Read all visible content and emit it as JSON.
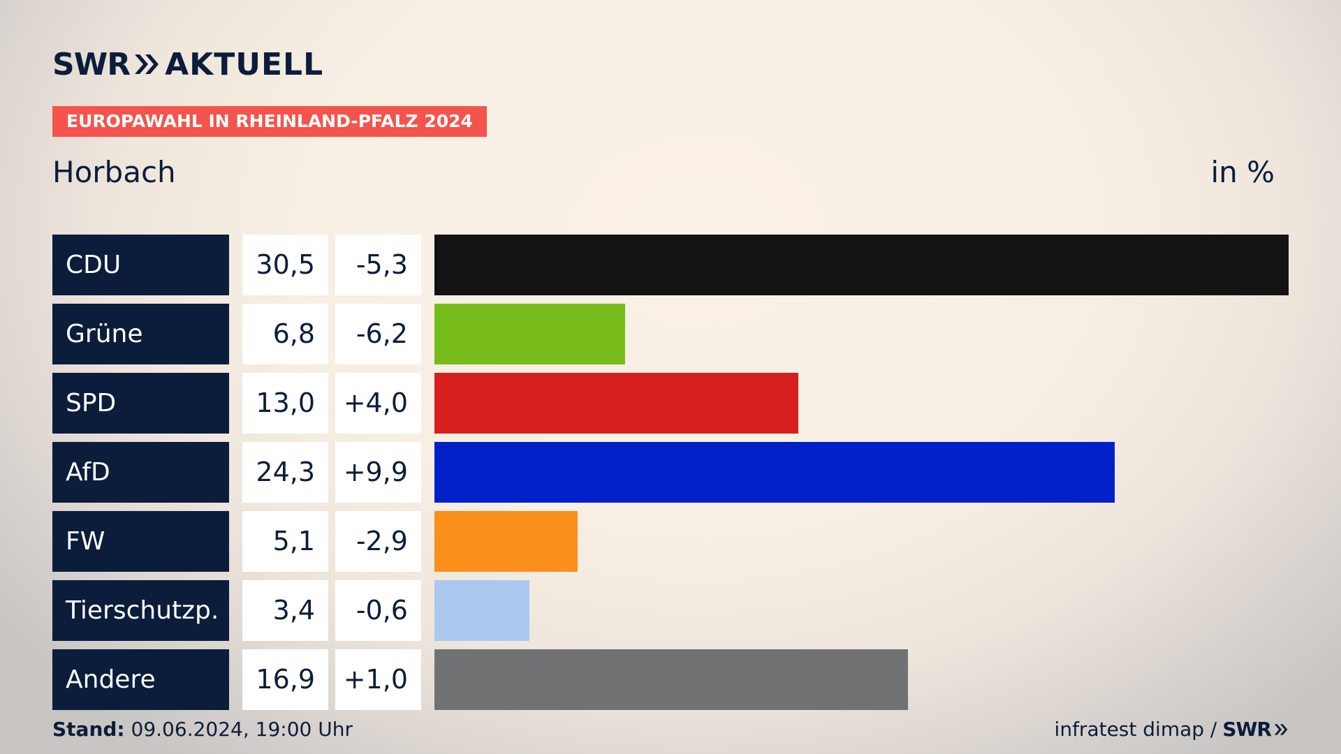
{
  "brand": {
    "swr": "SWR",
    "aktuell": "AKTUELL"
  },
  "election_tag": "EUROPAWAHL IN RHEINLAND-PFALZ 2024",
  "place": "Horbach",
  "unit": "in %",
  "footer": {
    "stand_label": "Stand:",
    "stand_value": "09.06.2024, 19:00 Uhr",
    "source": "infratest dimap /",
    "source_brand": "SWR"
  },
  "colors": {
    "navy": "#0b1d3a",
    "tag": "#f4544b"
  },
  "chart_data": {
    "type": "bar",
    "orientation": "horizontal",
    "categories": [
      "CDU",
      "Grüne",
      "SPD",
      "AfD",
      "FW",
      "Tierschutzp.",
      "Andere"
    ],
    "values": [
      30.5,
      6.8,
      13.0,
      24.3,
      5.1,
      3.4,
      16.9
    ],
    "value_labels": [
      "30,5",
      "6,8",
      "13,0",
      "24,3",
      "5,1",
      "3,4",
      "16,9"
    ],
    "changes": [
      -5.3,
      -6.2,
      4.0,
      9.9,
      -2.9,
      -0.6,
      1.0
    ],
    "change_labels": [
      "-5,3",
      "-6,2",
      "+4,0",
      "+9,9",
      "-2,9",
      "-0,6",
      "+1,0"
    ],
    "bar_colors": [
      "#131313",
      "#78bc1b",
      "#d71f1d",
      "#0021c8",
      "#fb8f1c",
      "#abc9ef",
      "#717274"
    ],
    "xlim": [
      0,
      30.5
    ],
    "grid": false
  }
}
